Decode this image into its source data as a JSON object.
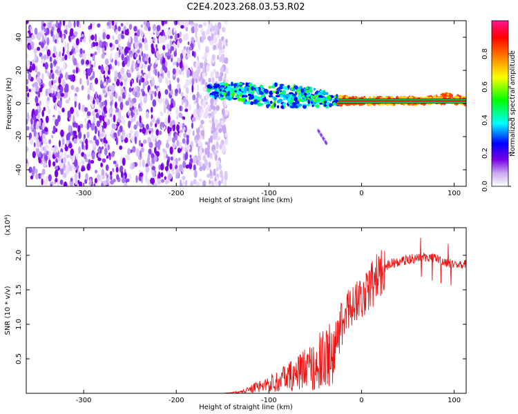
{
  "title": "C2E4.2023.268.03.53.R02",
  "chart_data": [
    {
      "type": "heatmap",
      "xlabel": "Height of straight line (km)",
      "ylabel": "Frequency (Hz)",
      "xlim": [
        -362,
        113
      ],
      "ylim": [
        -50,
        50
      ],
      "xticks": [
        -300,
        -200,
        -100,
        0,
        100
      ],
      "yticks": [
        -40,
        -20,
        0,
        20,
        40
      ],
      "colorbar": {
        "label": "Normalized spectral amplitude",
        "range": [
          0.0,
          1.0
        ],
        "ticks": [
          0.0,
          0.2,
          0.4,
          0.6,
          0.8
        ],
        "tick_labels": [
          "0.0",
          "0.2",
          "0.4",
          "0.6",
          "0.8"
        ],
        "colormap": [
          "#ffffff",
          "#c8a8f0",
          "#7a00e6",
          "#0000ff",
          "#00ffff",
          "#00ff00",
          "#ffff00",
          "#ff8000",
          "#ff0000",
          "#ff1493"
        ]
      },
      "features": [
        {
          "name": "noise",
          "x_range": [
            -362,
            -165
          ],
          "freq_range": [
            -50,
            50
          ],
          "amplitude": 0.05
        },
        {
          "name": "signal band",
          "x": [
            -165,
            -150,
            -120,
            -100,
            -80,
            -60,
            -40,
            -25,
            -10,
            0,
            20,
            50,
            70,
            90,
            113
          ],
          "freq": [
            8,
            7,
            6,
            5,
            4.5,
            4,
            3,
            2,
            1.5,
            1.5,
            1.5,
            1.5,
            1.5,
            3,
            1.5
          ],
          "width": [
            3,
            5,
            6,
            7,
            7,
            6,
            5,
            3,
            2,
            2,
            2,
            2,
            2,
            3,
            2
          ]
        },
        {
          "name": "streak",
          "x": [
            -47,
            -38
          ],
          "freq": [
            -16,
            -24
          ]
        }
      ]
    },
    {
      "type": "line",
      "xlabel": "Height of straight line (km)",
      "ylabel": "SNR (10 * v/v)",
      "y_exponent_label": "(x10⁴)",
      "xlim": [
        -362,
        113
      ],
      "ylim": [
        0,
        24000
      ],
      "xticks": [
        -300,
        -200,
        -100,
        0,
        100
      ],
      "yticks": [
        5000,
        10000,
        15000,
        20000
      ],
      "ytick_labels": [
        "0.5",
        "1.0",
        "1.5",
        "2.0"
      ],
      "color": "#ee1111",
      "x": [
        -362,
        -150,
        -130,
        -110,
        -90,
        -70,
        -50,
        -35,
        -25,
        -20,
        -15,
        -10,
        -5,
        0,
        10,
        20,
        30,
        40,
        50,
        60,
        70,
        80,
        90,
        100,
        113
      ],
      "y": [
        0,
        0,
        200,
        1000,
        1800,
        2800,
        4200,
        5500,
        7500,
        11000,
        12000,
        13000,
        13500,
        14000,
        15500,
        17500,
        18800,
        19000,
        19400,
        19600,
        19800,
        19500,
        19000,
        18700,
        18800
      ]
    }
  ]
}
